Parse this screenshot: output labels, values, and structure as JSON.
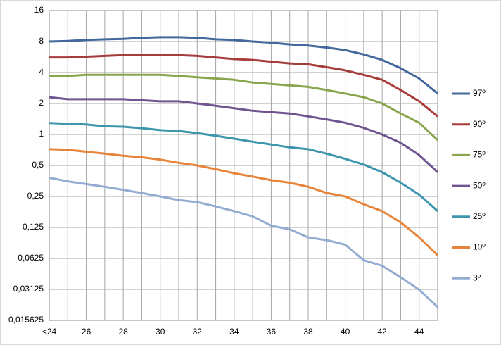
{
  "chart_data": {
    "type": "line",
    "ylog": true,
    "grid": true,
    "legend": "right",
    "categories": [
      "<24",
      null,
      "26",
      null,
      "28",
      null,
      "30",
      null,
      "32",
      null,
      "34",
      null,
      "36",
      null,
      "38",
      null,
      "40",
      null,
      "42",
      null,
      "44",
      null
    ],
    "ylim": [
      0.015625,
      16
    ],
    "yticks": [
      {
        "value": 0.015625,
        "label": "0,015625"
      },
      {
        "value": 0.03125,
        "label": "0,03125"
      },
      {
        "value": 0.0625,
        "label": "0,0625"
      },
      {
        "value": 0.125,
        "label": "0,125"
      },
      {
        "value": 0.25,
        "label": "0,25"
      },
      {
        "value": 0.5,
        "label": "0,5"
      },
      1,
      2,
      4,
      8,
      16
    ],
    "series": [
      {
        "name": "97º",
        "color": "#43689b",
        "values": [
          8,
          8.1,
          8.3,
          8.4,
          8.5,
          8.7,
          8.8,
          8.8,
          8.7,
          8.4,
          8.3,
          8,
          7.8,
          7.5,
          7.3,
          7.0,
          6.6,
          6.0,
          5.3,
          4.4,
          3.5,
          2.5
        ]
      },
      {
        "name": "90º",
        "color": "#a73d3a",
        "values": [
          5.6,
          5.6,
          5.7,
          5.8,
          5.9,
          5.9,
          5.9,
          5.9,
          5.8,
          5.6,
          5.4,
          5.3,
          5.1,
          4.9,
          4.8,
          4.5,
          4.2,
          3.8,
          3.4,
          2.7,
          2.1,
          1.5
        ]
      },
      {
        "name": "75º",
        "color": "#89a64e",
        "values": [
          3.7,
          3.7,
          3.8,
          3.8,
          3.8,
          3.8,
          3.8,
          3.7,
          3.6,
          3.5,
          3.4,
          3.2,
          3.1,
          3.0,
          2.9,
          2.7,
          2.5,
          2.3,
          2.0,
          1.6,
          1.3,
          0.88
        ]
      },
      {
        "name": "50º",
        "color": "#6f548f",
        "values": [
          2.3,
          2.2,
          2.2,
          2.2,
          2.2,
          2.15,
          2.1,
          2.1,
          2.0,
          1.9,
          1.8,
          1.7,
          1.65,
          1.6,
          1.5,
          1.4,
          1.3,
          1.16,
          1.0,
          0.83,
          0.63,
          0.43
        ]
      },
      {
        "name": "25º",
        "color": "#3d96ae",
        "values": [
          1.29,
          1.27,
          1.25,
          1.2,
          1.19,
          1.15,
          1.1,
          1.08,
          1.03,
          0.97,
          0.91,
          0.85,
          0.8,
          0.75,
          0.72,
          0.65,
          0.58,
          0.51,
          0.43,
          0.34,
          0.26,
          0.18
        ]
      },
      {
        "name": "10º",
        "color": "#e8843a",
        "values": [
          0.72,
          0.71,
          0.68,
          0.65,
          0.62,
          0.6,
          0.57,
          0.53,
          0.5,
          0.46,
          0.42,
          0.39,
          0.36,
          0.34,
          0.31,
          0.27,
          0.25,
          0.21,
          0.18,
          0.14,
          0.1,
          0.067
        ]
      },
      {
        "name": "3º",
        "color": "#93add2",
        "values": [
          0.38,
          0.35,
          0.33,
          0.31,
          0.29,
          0.27,
          0.25,
          0.23,
          0.22,
          0.2,
          0.18,
          0.16,
          0.13,
          0.12,
          0.1,
          0.094,
          0.085,
          0.06,
          0.053,
          0.041,
          0.031,
          0.021
        ]
      }
    ]
  }
}
